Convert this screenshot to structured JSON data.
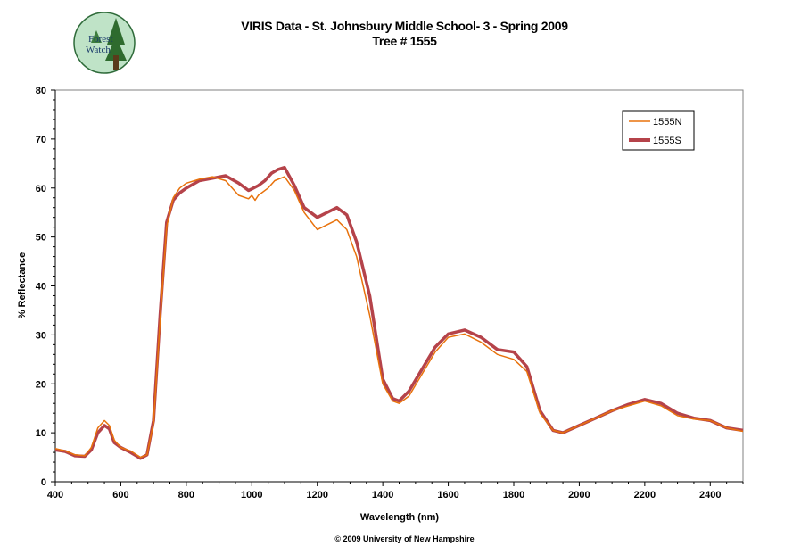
{
  "logo": {
    "text_top": "Forest",
    "text_bottom": "Watch"
  },
  "title_line1": "VIRIS Data - St. Johnsbury Middle School- 3 - Spring 2009",
  "title_line2": "Tree # 1555",
  "copyright": "© 2009 University of New Hampshire",
  "colors": {
    "series_1555N": "#e8720c",
    "series_1555S": "#b5434a",
    "plot_border": "#808080"
  },
  "chart_data": {
    "type": "line",
    "xlabel": "Wavelength (nm)",
    "ylabel": "% Reflectance",
    "xlim": [
      400,
      2500
    ],
    "ylim": [
      0,
      80
    ],
    "xticks": [
      400,
      600,
      800,
      1000,
      1200,
      1400,
      1600,
      1800,
      2000,
      2200,
      2400
    ],
    "yticks": [
      0,
      10,
      20,
      30,
      40,
      50,
      60,
      70,
      80
    ],
    "grid": false,
    "legend_position": "top-right",
    "series": [
      {
        "name": "1555N",
        "x": [
          400,
          430,
          460,
          490,
          510,
          530,
          550,
          565,
          580,
          600,
          630,
          660,
          680,
          700,
          720,
          740,
          760,
          780,
          800,
          840,
          880,
          920,
          960,
          990,
          1000,
          1010,
          1020,
          1050,
          1070,
          1100,
          1130,
          1160,
          1200,
          1230,
          1260,
          1290,
          1320,
          1360,
          1400,
          1430,
          1450,
          1480,
          1520,
          1560,
          1600,
          1650,
          1700,
          1750,
          1800,
          1840,
          1880,
          1920,
          1950,
          2000,
          2050,
          2100,
          2150,
          2200,
          2250,
          2300,
          2350,
          2400,
          2450,
          2500
        ],
        "y": [
          6.8,
          6.3,
          5.5,
          5.3,
          7.0,
          11.0,
          12.5,
          11.5,
          8.5,
          7.0,
          6.3,
          5.0,
          5.5,
          12.0,
          33.0,
          52.0,
          58.0,
          60.0,
          61.0,
          61.8,
          62.3,
          61.5,
          58.5,
          57.8,
          58.5,
          57.5,
          58.5,
          60.0,
          61.5,
          62.3,
          59.5,
          55.0,
          51.5,
          52.5,
          53.5,
          51.5,
          46.0,
          34.0,
          20.0,
          16.5,
          16.0,
          17.5,
          22.0,
          26.5,
          29.5,
          30.2,
          28.5,
          26.0,
          25.0,
          22.5,
          14.0,
          10.5,
          10.0,
          11.5,
          13.0,
          14.5,
          15.5,
          16.5,
          15.5,
          13.5,
          12.8,
          12.5,
          11.0,
          10.3
        ]
      },
      {
        "name": "1555S",
        "x": [
          400,
          430,
          460,
          490,
          510,
          530,
          550,
          565,
          580,
          600,
          630,
          660,
          680,
          700,
          720,
          740,
          760,
          780,
          800,
          840,
          880,
          920,
          960,
          990,
          1000,
          1020,
          1040,
          1060,
          1080,
          1100,
          1130,
          1160,
          1200,
          1230,
          1260,
          1290,
          1320,
          1360,
          1400,
          1430,
          1450,
          1480,
          1520,
          1560,
          1600,
          1650,
          1700,
          1750,
          1800,
          1840,
          1880,
          1920,
          1950,
          2000,
          2050,
          2100,
          2150,
          2200,
          2250,
          2300,
          2350,
          2400,
          2450,
          2500
        ],
        "y": [
          6.5,
          6.2,
          5.3,
          5.2,
          6.5,
          10.0,
          11.5,
          10.8,
          8.0,
          7.0,
          6.0,
          4.8,
          5.5,
          12.5,
          34.0,
          53.0,
          57.5,
          59.0,
          60.0,
          61.5,
          62.0,
          62.5,
          61.0,
          59.5,
          59.8,
          60.5,
          61.5,
          63.0,
          63.8,
          64.2,
          60.5,
          56.0,
          54.0,
          55.0,
          56.0,
          54.5,
          49.0,
          38.0,
          21.0,
          17.0,
          16.5,
          18.5,
          23.0,
          27.5,
          30.2,
          31.0,
          29.5,
          27.0,
          26.5,
          23.5,
          14.5,
          10.5,
          10.0,
          11.5,
          13.0,
          14.5,
          15.8,
          16.8,
          16.0,
          14.0,
          13.0,
          12.5,
          11.0,
          10.5
        ]
      }
    ]
  }
}
